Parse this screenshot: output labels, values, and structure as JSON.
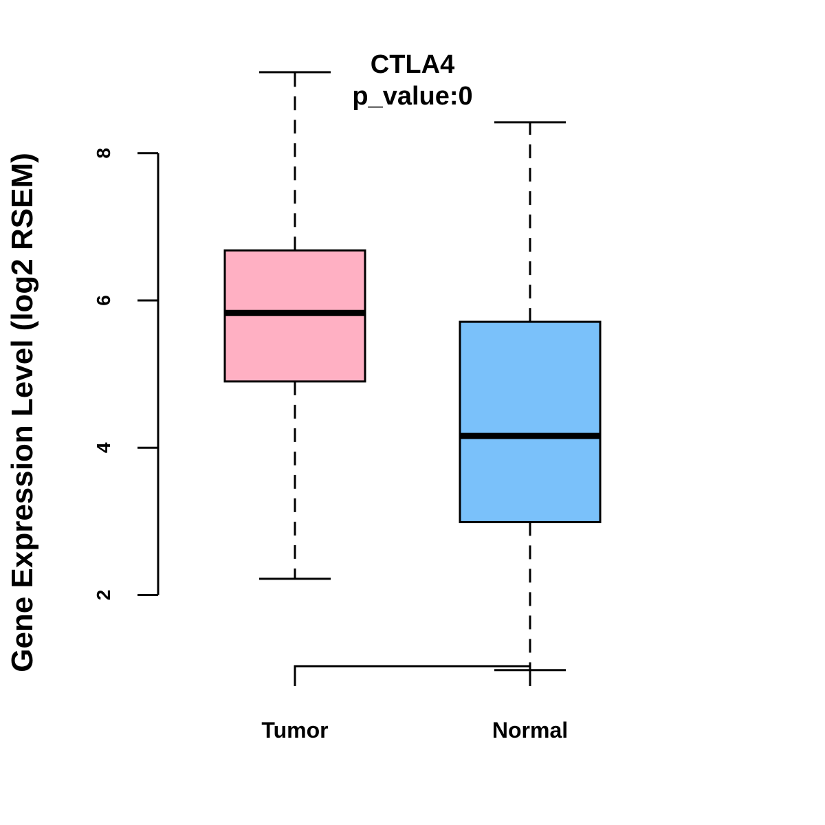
{
  "chart_data": {
    "type": "boxplot",
    "title": "CTLA4",
    "subtitle": "p_value:0",
    "xlabel": "",
    "ylabel": "Gene Expression Level (log2 RSEM)",
    "yticks": [
      2,
      4,
      6,
      8
    ],
    "ylim": [
      0.52,
      9.52
    ],
    "categories": [
      "Tumor",
      "Normal"
    ],
    "series": [
      {
        "name": "Tumor",
        "color": "#FFB0C3",
        "whisker_low": 2.22,
        "q1": 4.9,
        "median": 5.83,
        "q3": 6.68,
        "whisker_high": 9.1
      },
      {
        "name": "Normal",
        "color": "#7AC1FA",
        "whisker_low": 0.98,
        "q1": 2.99,
        "median": 4.16,
        "q3": 5.71,
        "whisker_high": 8.42
      }
    ],
    "grid": false,
    "legend": "none"
  }
}
